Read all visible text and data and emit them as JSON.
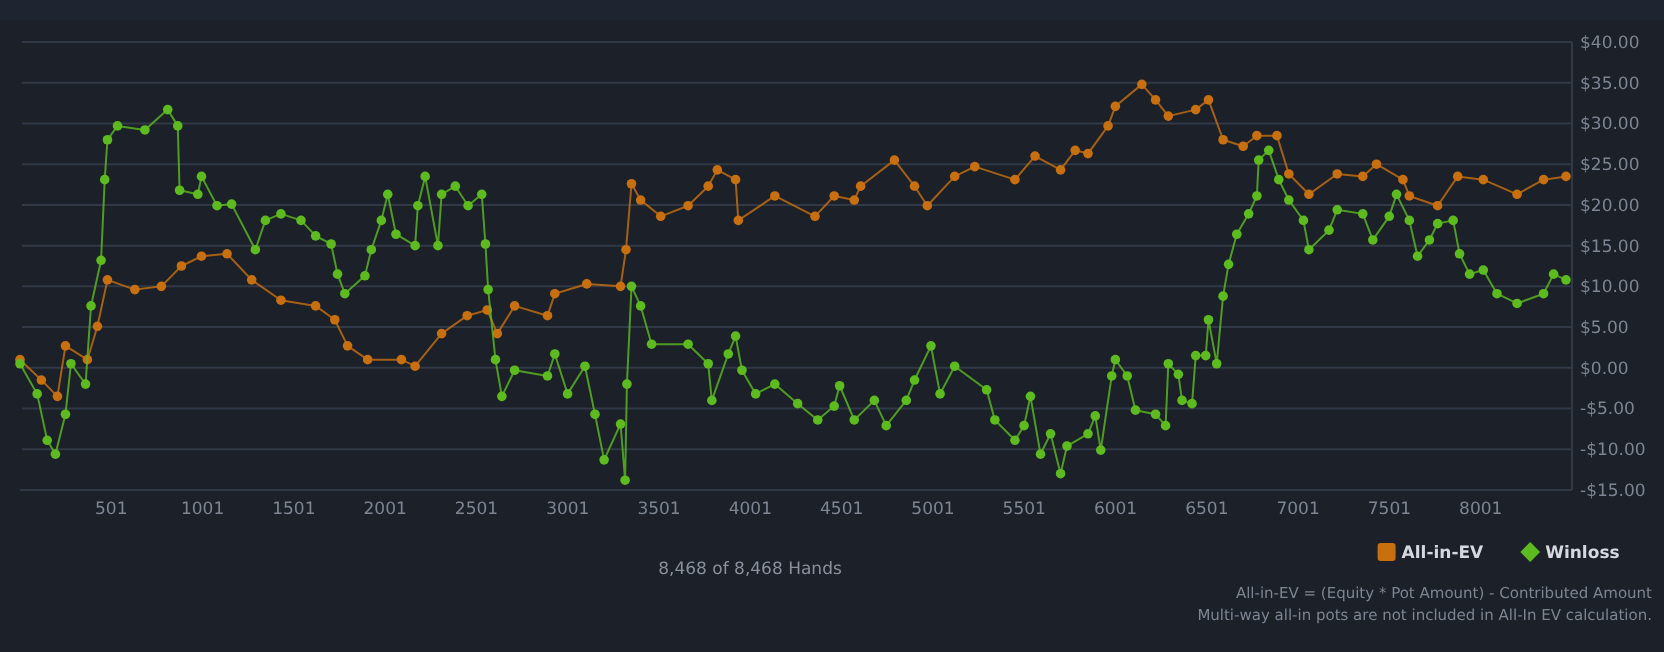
{
  "chart_data": {
    "type": "line",
    "xlabel": "8,468 of 8,468 Hands",
    "annotations": [
      "All-in-EV = (Equity * Pot Amount) - Contributed Amount",
      "Multi-way all-in pots are not included in All-In EV calculation."
    ],
    "xlim": [
      1,
      8468
    ],
    "xticks": [
      501,
      1001,
      1501,
      2001,
      2501,
      3001,
      3501,
      4001,
      4501,
      5001,
      5501,
      6001,
      6501,
      7001,
      7501,
      8001
    ],
    "ylim": [
      -15,
      40
    ],
    "yticks": [
      {
        "value": -15,
        "label": "-$15.00"
      },
      {
        "value": -10,
        "label": "-$10.00"
      },
      {
        "value": -5,
        "label": "-$5.00"
      },
      {
        "value": 0,
        "label": "$0.00"
      },
      {
        "value": 5,
        "label": "$5.00"
      },
      {
        "value": 10,
        "label": "$10.00"
      },
      {
        "value": 15,
        "label": "$15.00"
      },
      {
        "value": 20,
        "label": "$20.00"
      },
      {
        "value": 25,
        "label": "$25.00"
      },
      {
        "value": 30,
        "label": "$30.00"
      },
      {
        "value": 35,
        "label": "$35.00"
      },
      {
        "value": 40,
        "label": "$40.00"
      }
    ],
    "grid": "y",
    "legend": "bottom right",
    "marker": "circle",
    "line_style": "solid",
    "series": [
      {
        "name": "All-in-EV",
        "color": "#c8700f",
        "x": [
          1,
          118,
          206,
          250,
          370,
          425,
          480,
          630,
          775,
          885,
          995,
          1135,
          1270,
          1430,
          1620,
          1725,
          1795,
          1905,
          2090,
          2165,
          2310,
          2450,
          2560,
          2615,
          2710,
          2890,
          2930,
          3105,
          3290,
          3320,
          3350,
          3400,
          3510,
          3660,
          3770,
          3820,
          3920,
          3935,
          4135,
          4355,
          4460,
          4570,
          4605,
          4790,
          4900,
          4970,
          5120,
          5230,
          5450,
          5560,
          5700,
          5780,
          5850,
          5960,
          6000,
          6145,
          6220,
          6290,
          6440,
          6510,
          6590,
          6700,
          6775,
          6885,
          6950,
          7060,
          7215,
          7355,
          7430,
          7575,
          7610,
          7765,
          7875,
          8015,
          8200,
          8345,
          8468
        ],
        "values": [
          1.0,
          -1.5,
          -3.5,
          2.7,
          1.0,
          5.1,
          10.8,
          9.6,
          10.0,
          12.5,
          13.7,
          14.0,
          10.8,
          8.3,
          7.6,
          5.9,
          2.7,
          1.0,
          1.0,
          0.2,
          4.2,
          6.4,
          7.1,
          4.2,
          7.6,
          6.4,
          9.1,
          10.3,
          10.0,
          14.5,
          22.6,
          20.6,
          18.6,
          19.9,
          22.3,
          24.3,
          23.1,
          18.1,
          21.1,
          18.6,
          21.1,
          20.6,
          22.3,
          25.5,
          22.3,
          19.9,
          23.5,
          24.7,
          23.1,
          26.0,
          24.3,
          26.7,
          26.3,
          29.7,
          32.1,
          34.8,
          32.9,
          30.9,
          31.7,
          32.9,
          28.0,
          27.2,
          28.5,
          28.5,
          23.8,
          21.3,
          23.8,
          23.5,
          25.0,
          23.1,
          21.1,
          19.9,
          23.5,
          23.1,
          21.3,
          23.1,
          23.5
        ]
      },
      {
        "name": "Winloss",
        "color": "#5dbb1f",
        "x": [
          1,
          95,
          150,
          195,
          250,
          280,
          360,
          390,
          445,
          465,
          480,
          535,
          685,
          810,
          865,
          875,
          975,
          995,
          1080,
          1160,
          1290,
          1345,
          1430,
          1540,
          1620,
          1705,
          1740,
          1780,
          1890,
          1925,
          1980,
          2015,
          2060,
          2165,
          2180,
          2220,
          2290,
          2310,
          2385,
          2455,
          2530,
          2550,
          2565,
          2605,
          2640,
          2710,
          2890,
          2930,
          3000,
          3095,
          3150,
          3200,
          3290,
          3315,
          3325,
          3350,
          3400,
          3460,
          3660,
          3770,
          3790,
          3880,
          3920,
          3955,
          4030,
          4135,
          4260,
          4370,
          4460,
          4490,
          4570,
          4680,
          4745,
          4855,
          4900,
          4990,
          5040,
          5120,
          5295,
          5340,
          5450,
          5500,
          5535,
          5590,
          5645,
          5700,
          5735,
          5850,
          5890,
          5920,
          5980,
          6000,
          6065,
          6110,
          6220,
          6275,
          6290,
          6345,
          6365,
          6420,
          6440,
          6495,
          6510,
          6555,
          6590,
          6620,
          6665,
          6730,
          6775,
          6785,
          6840,
          6895,
          6950,
          7030,
          7060,
          7170,
          7215,
          7355,
          7410,
          7500,
          7540,
          7610,
          7655,
          7720,
          7765,
          7850,
          7885,
          7940,
          8015,
          8090,
          8200,
          8345,
          8400,
          8468
        ],
        "values": [
          0.5,
          -3.2,
          -8.9,
          -10.6,
          -5.7,
          0.5,
          -2.0,
          7.6,
          13.2,
          23.1,
          28.0,
          29.7,
          29.2,
          31.7,
          29.7,
          21.8,
          21.3,
          23.5,
          19.9,
          20.1,
          14.5,
          18.1,
          18.9,
          18.1,
          16.2,
          15.2,
          11.5,
          9.1,
          11.3,
          14.5,
          18.1,
          21.3,
          16.4,
          15.0,
          19.9,
          23.5,
          15.0,
          21.3,
          22.3,
          19.9,
          21.3,
          15.2,
          9.6,
          1.0,
          -3.5,
          -0.3,
          -1.0,
          1.7,
          -3.2,
          0.2,
          -5.7,
          -11.3,
          -6.9,
          -13.8,
          -2.0,
          10.0,
          7.6,
          2.9,
          2.9,
          0.5,
          -4.0,
          1.7,
          3.9,
          -0.3,
          -3.2,
          -2.0,
          -4.4,
          -6.4,
          -4.7,
          -2.2,
          -6.4,
          -4.0,
          -7.1,
          -4.0,
          -1.5,
          2.7,
          -3.2,
          0.2,
          -2.7,
          -6.4,
          -8.9,
          -7.1,
          -3.5,
          -10.6,
          -8.1,
          -13.0,
          -9.6,
          -8.1,
          -5.9,
          -10.1,
          -1.0,
          1.0,
          -1.0,
          -5.2,
          -5.7,
          -7.1,
          0.5,
          -0.8,
          -4.0,
          -4.4,
          1.5,
          1.5,
          5.9,
          0.5,
          8.8,
          12.7,
          16.4,
          18.9,
          21.1,
          25.5,
          26.7,
          23.1,
          20.6,
          18.1,
          14.5,
          16.9,
          19.4,
          18.9,
          15.7,
          18.6,
          21.3,
          18.1,
          13.7,
          15.7,
          17.7,
          18.1,
          14.0,
          11.5,
          12.0,
          9.1,
          7.9,
          9.1,
          11.5,
          10.8
        ]
      }
    ]
  }
}
